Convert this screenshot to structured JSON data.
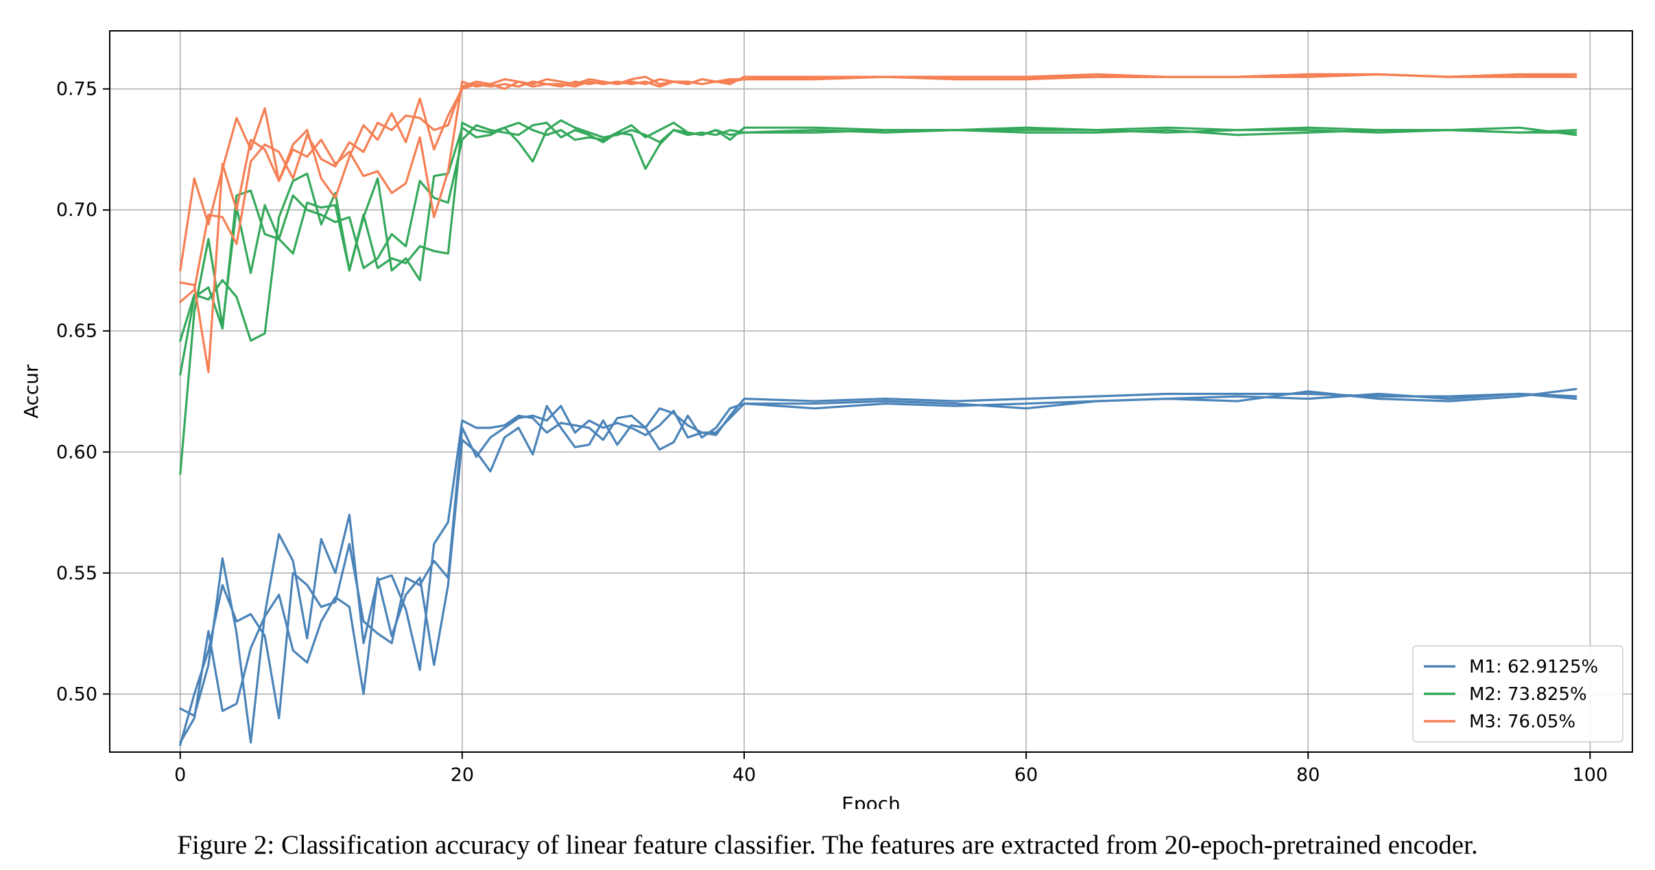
{
  "chart_data": {
    "type": "line",
    "xlabel": "Epoch",
    "ylabel": "Accur",
    "xlim": [
      -5,
      103
    ],
    "ylim": [
      0.476,
      0.774
    ],
    "x_ticks": [
      0,
      20,
      40,
      60,
      80,
      100
    ],
    "y_ticks": [
      0.5,
      0.55,
      0.6,
      0.65,
      0.7,
      0.75
    ],
    "y_tick_labels": [
      "0.50",
      "0.55",
      "0.60",
      "0.65",
      "0.70",
      "0.75"
    ],
    "grid": true,
    "legend_placement": "lower-right",
    "legend": [
      {
        "label": "M1: 62.9125%",
        "color": "#4a83b8"
      },
      {
        "label": "M2: 73.825%",
        "color": "#34a85a"
      },
      {
        "label": "M3: 76.05%",
        "color": "#f57f53"
      }
    ],
    "series": [
      {
        "group": 0,
        "color": "#4a83b8",
        "x": [
          0,
          1,
          2,
          3,
          4,
          5,
          6,
          7,
          8,
          9,
          10,
          11,
          12,
          13,
          14,
          15,
          16,
          17,
          18,
          19,
          20,
          21,
          22,
          23,
          24,
          25,
          26,
          27,
          28,
          29,
          30,
          31,
          32,
          33,
          34,
          35,
          36,
          37,
          38,
          39,
          40,
          45,
          50,
          55,
          60,
          65,
          70,
          75,
          80,
          85,
          90,
          95,
          99
        ],
        "values": [
          0.494,
          0.491,
          0.512,
          0.556,
          0.525,
          0.48,
          0.533,
          0.566,
          0.555,
          0.523,
          0.564,
          0.55,
          0.574,
          0.521,
          0.547,
          0.549,
          0.535,
          0.51,
          0.562,
          0.571,
          0.613,
          0.61,
          0.61,
          0.611,
          0.615,
          0.614,
          0.608,
          0.612,
          0.611,
          0.61,
          0.605,
          0.614,
          0.615,
          0.61,
          0.618,
          0.616,
          0.611,
          0.608,
          0.607,
          0.615,
          0.622,
          0.621,
          0.622,
          0.621,
          0.622,
          0.623,
          0.624,
          0.624,
          0.624,
          0.623,
          0.623,
          0.624,
          0.623
        ]
      },
      {
        "group": 0,
        "color": "#4a83b8",
        "x": [
          0,
          1,
          2,
          3,
          4,
          5,
          6,
          7,
          8,
          9,
          10,
          11,
          12,
          13,
          14,
          15,
          16,
          17,
          18,
          19,
          20,
          21,
          22,
          23,
          24,
          25,
          26,
          27,
          28,
          29,
          30,
          31,
          32,
          33,
          34,
          35,
          36,
          37,
          38,
          39,
          40,
          45,
          50,
          55,
          60,
          65,
          70,
          75,
          80,
          85,
          90,
          95,
          99
        ],
        "values": [
          0.48,
          0.49,
          0.526,
          0.493,
          0.496,
          0.519,
          0.532,
          0.541,
          0.518,
          0.513,
          0.53,
          0.54,
          0.536,
          0.5,
          0.548,
          0.524,
          0.541,
          0.548,
          0.512,
          0.545,
          0.605,
          0.6,
          0.592,
          0.606,
          0.61,
          0.599,
          0.619,
          0.61,
          0.602,
          0.603,
          0.613,
          0.603,
          0.611,
          0.61,
          0.601,
          0.604,
          0.615,
          0.606,
          0.61,
          0.618,
          0.62,
          0.618,
          0.62,
          0.619,
          0.62,
          0.621,
          0.622,
          0.621,
          0.625,
          0.622,
          0.621,
          0.623,
          0.626
        ]
      },
      {
        "group": 0,
        "color": "#4a83b8",
        "x": [
          0,
          1,
          2,
          3,
          4,
          5,
          6,
          7,
          8,
          9,
          10,
          11,
          12,
          13,
          14,
          15,
          16,
          17,
          18,
          19,
          20,
          21,
          22,
          23,
          24,
          25,
          26,
          27,
          28,
          29,
          30,
          31,
          32,
          33,
          34,
          35,
          36,
          37,
          38,
          39,
          40,
          45,
          50,
          55,
          60,
          65,
          70,
          75,
          80,
          85,
          90,
          95,
          99
        ],
        "values": [
          0.479,
          0.5,
          0.518,
          0.545,
          0.53,
          0.533,
          0.524,
          0.49,
          0.55,
          0.545,
          0.536,
          0.538,
          0.562,
          0.53,
          0.525,
          0.521,
          0.548,
          0.545,
          0.555,
          0.548,
          0.61,
          0.598,
          0.606,
          0.61,
          0.614,
          0.615,
          0.613,
          0.619,
          0.608,
          0.613,
          0.61,
          0.612,
          0.61,
          0.607,
          0.611,
          0.617,
          0.606,
          0.608,
          0.608,
          0.614,
          0.62,
          0.62,
          0.621,
          0.62,
          0.618,
          0.621,
          0.622,
          0.623,
          0.622,
          0.624,
          0.622,
          0.624,
          0.622
        ]
      },
      {
        "group": 1,
        "color": "#34a85a",
        "x": [
          0,
          1,
          2,
          3,
          4,
          5,
          6,
          7,
          8,
          9,
          10,
          11,
          12,
          13,
          14,
          15,
          16,
          17,
          18,
          19,
          20,
          21,
          22,
          23,
          24,
          25,
          26,
          27,
          28,
          29,
          30,
          31,
          32,
          33,
          34,
          35,
          36,
          37,
          38,
          39,
          40,
          45,
          50,
          55,
          60,
          65,
          70,
          75,
          80,
          85,
          90,
          95,
          99
        ],
        "values": [
          0.646,
          0.665,
          0.663,
          0.671,
          0.664,
          0.646,
          0.649,
          0.697,
          0.712,
          0.715,
          0.694,
          0.707,
          0.675,
          0.697,
          0.713,
          0.675,
          0.68,
          0.671,
          0.714,
          0.715,
          0.734,
          0.73,
          0.731,
          0.734,
          0.728,
          0.72,
          0.733,
          0.737,
          0.734,
          0.732,
          0.73,
          0.731,
          0.733,
          0.731,
          0.728,
          0.733,
          0.732,
          0.731,
          0.733,
          0.731,
          0.732,
          0.733,
          0.732,
          0.733,
          0.733,
          0.733,
          0.732,
          0.733,
          0.733,
          0.732,
          0.733,
          0.732,
          0.732
        ]
      },
      {
        "group": 1,
        "color": "#34a85a",
        "x": [
          0,
          1,
          2,
          3,
          4,
          5,
          6,
          7,
          8,
          9,
          10,
          11,
          12,
          13,
          14,
          15,
          16,
          17,
          18,
          19,
          20,
          21,
          22,
          23,
          24,
          25,
          26,
          27,
          28,
          29,
          30,
          31,
          32,
          33,
          34,
          35,
          36,
          37,
          38,
          39,
          40,
          45,
          50,
          55,
          60,
          65,
          70,
          75,
          80,
          85,
          90,
          95,
          99
        ],
        "values": [
          0.632,
          0.664,
          0.668,
          0.651,
          0.706,
          0.708,
          0.69,
          0.688,
          0.682,
          0.703,
          0.701,
          0.702,
          0.675,
          0.698,
          0.676,
          0.68,
          0.678,
          0.685,
          0.683,
          0.682,
          0.736,
          0.733,
          0.732,
          0.734,
          0.736,
          0.733,
          0.731,
          0.733,
          0.729,
          0.73,
          0.729,
          0.732,
          0.731,
          0.717,
          0.727,
          0.733,
          0.731,
          0.732,
          0.731,
          0.733,
          0.732,
          0.732,
          0.733,
          0.733,
          0.732,
          0.732,
          0.733,
          0.731,
          0.732,
          0.733,
          0.733,
          0.732,
          0.733
        ]
      },
      {
        "group": 1,
        "color": "#34a85a",
        "x": [
          0,
          1,
          2,
          3,
          4,
          5,
          6,
          7,
          8,
          9,
          10,
          11,
          12,
          13,
          14,
          15,
          16,
          17,
          18,
          19,
          20,
          21,
          22,
          23,
          24,
          25,
          26,
          27,
          28,
          29,
          30,
          31,
          32,
          33,
          34,
          35,
          36,
          37,
          38,
          39,
          40,
          45,
          50,
          55,
          60,
          65,
          70,
          75,
          80,
          85,
          90,
          95,
          99
        ],
        "values": [
          0.591,
          0.658,
          0.688,
          0.652,
          0.701,
          0.674,
          0.702,
          0.688,
          0.706,
          0.7,
          0.698,
          0.695,
          0.697,
          0.676,
          0.68,
          0.69,
          0.685,
          0.712,
          0.705,
          0.703,
          0.729,
          0.735,
          0.733,
          0.732,
          0.731,
          0.735,
          0.736,
          0.73,
          0.733,
          0.731,
          0.728,
          0.732,
          0.735,
          0.73,
          0.733,
          0.736,
          0.732,
          0.731,
          0.733,
          0.729,
          0.734,
          0.734,
          0.733,
          0.733,
          0.734,
          0.733,
          0.734,
          0.733,
          0.734,
          0.733,
          0.733,
          0.734,
          0.731
        ]
      },
      {
        "group": 2,
        "color": "#f57f53",
        "x": [
          0,
          1,
          2,
          3,
          4,
          5,
          6,
          7,
          8,
          9,
          10,
          11,
          12,
          13,
          14,
          15,
          16,
          17,
          18,
          19,
          20,
          21,
          22,
          23,
          24,
          25,
          26,
          27,
          28,
          29,
          30,
          31,
          32,
          33,
          34,
          35,
          36,
          37,
          38,
          39,
          40,
          45,
          50,
          55,
          60,
          65,
          70,
          75,
          80,
          85,
          90,
          95,
          99
        ],
        "values": [
          0.675,
          0.713,
          0.694,
          0.717,
          0.738,
          0.725,
          0.742,
          0.712,
          0.727,
          0.733,
          0.713,
          0.705,
          0.722,
          0.735,
          0.729,
          0.74,
          0.728,
          0.746,
          0.725,
          0.739,
          0.75,
          0.752,
          0.751,
          0.752,
          0.751,
          0.753,
          0.752,
          0.751,
          0.753,
          0.752,
          0.753,
          0.752,
          0.753,
          0.752,
          0.754,
          0.753,
          0.752,
          0.754,
          0.753,
          0.754,
          0.754,
          0.755,
          0.755,
          0.755,
          0.755,
          0.755,
          0.755,
          0.755,
          0.755,
          0.756,
          0.755,
          0.756,
          0.755
        ]
      },
      {
        "group": 2,
        "color": "#f57f53",
        "x": [
          0,
          1,
          2,
          3,
          4,
          5,
          6,
          7,
          8,
          9,
          10,
          11,
          12,
          13,
          14,
          15,
          16,
          17,
          18,
          19,
          20,
          21,
          22,
          23,
          24,
          25,
          26,
          27,
          28,
          29,
          30,
          31,
          32,
          33,
          34,
          35,
          36,
          37,
          38,
          39,
          40,
          45,
          50,
          55,
          60,
          65,
          70,
          75,
          80,
          85,
          90,
          95,
          99
        ],
        "values": [
          0.67,
          0.669,
          0.633,
          0.719,
          0.7,
          0.729,
          0.725,
          0.712,
          0.725,
          0.722,
          0.729,
          0.719,
          0.724,
          0.714,
          0.716,
          0.707,
          0.711,
          0.73,
          0.697,
          0.716,
          0.753,
          0.751,
          0.752,
          0.75,
          0.753,
          0.751,
          0.752,
          0.752,
          0.751,
          0.753,
          0.752,
          0.753,
          0.752,
          0.753,
          0.751,
          0.753,
          0.753,
          0.752,
          0.753,
          0.753,
          0.754,
          0.754,
          0.755,
          0.754,
          0.754,
          0.755,
          0.755,
          0.755,
          0.756,
          0.756,
          0.755,
          0.756,
          0.756
        ]
      },
      {
        "group": 2,
        "color": "#f57f53",
        "x": [
          0,
          1,
          2,
          3,
          4,
          5,
          6,
          7,
          8,
          9,
          10,
          11,
          12,
          13,
          14,
          15,
          16,
          17,
          18,
          19,
          20,
          21,
          22,
          23,
          24,
          25,
          26,
          27,
          28,
          29,
          30,
          31,
          32,
          33,
          34,
          35,
          36,
          37,
          38,
          39,
          40,
          45,
          50,
          55,
          60,
          65,
          70,
          75,
          80,
          85,
          90,
          95,
          99
        ],
        "values": [
          0.662,
          0.667,
          0.698,
          0.697,
          0.686,
          0.72,
          0.727,
          0.724,
          0.713,
          0.731,
          0.721,
          0.718,
          0.728,
          0.724,
          0.736,
          0.733,
          0.739,
          0.738,
          0.733,
          0.735,
          0.751,
          0.753,
          0.752,
          0.754,
          0.753,
          0.752,
          0.754,
          0.753,
          0.752,
          0.754,
          0.753,
          0.752,
          0.754,
          0.755,
          0.752,
          0.753,
          0.752,
          0.754,
          0.753,
          0.752,
          0.755,
          0.755,
          0.755,
          0.755,
          0.755,
          0.756,
          0.755,
          0.755,
          0.756,
          0.756,
          0.755,
          0.755,
          0.755
        ]
      }
    ]
  },
  "caption": "Figure 2: Classification accuracy of linear feature classifier. The features are extracted from 20-epoch-pretrained encoder."
}
